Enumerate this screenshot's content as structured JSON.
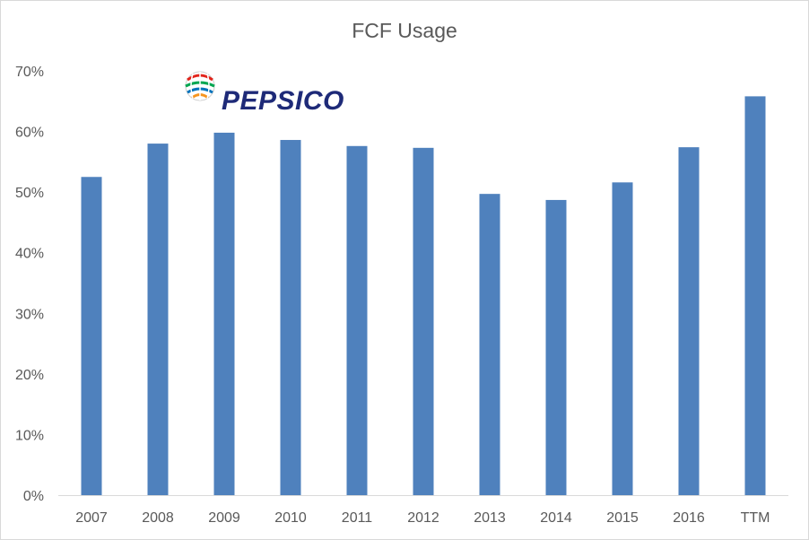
{
  "chart_data": {
    "type": "bar",
    "title": "FCF Usage",
    "categories": [
      "2007",
      "2008",
      "2009",
      "2010",
      "2011",
      "2012",
      "2013",
      "2014",
      "2015",
      "2016",
      "TTM"
    ],
    "values": [
      52.5,
      58.0,
      59.8,
      58.6,
      57.6,
      57.3,
      49.7,
      48.7,
      51.6,
      57.4,
      65.8
    ],
    "value_unit": "%",
    "ylim": [
      0,
      70
    ],
    "y_ticks": [
      0,
      10,
      20,
      30,
      40,
      50,
      60,
      70
    ],
    "y_tick_labels": [
      "0%",
      "10%",
      "20%",
      "30%",
      "40%",
      "50%",
      "60%",
      "70%"
    ],
    "xlabel": "",
    "ylabel": "",
    "grid": false,
    "legend": "none",
    "bar_color": "#4f81bd"
  },
  "logo": {
    "text": "PEPSICO",
    "globe_colors": [
      "#e2231a",
      "#00a651",
      "#0072bc",
      "#f7941d"
    ]
  }
}
